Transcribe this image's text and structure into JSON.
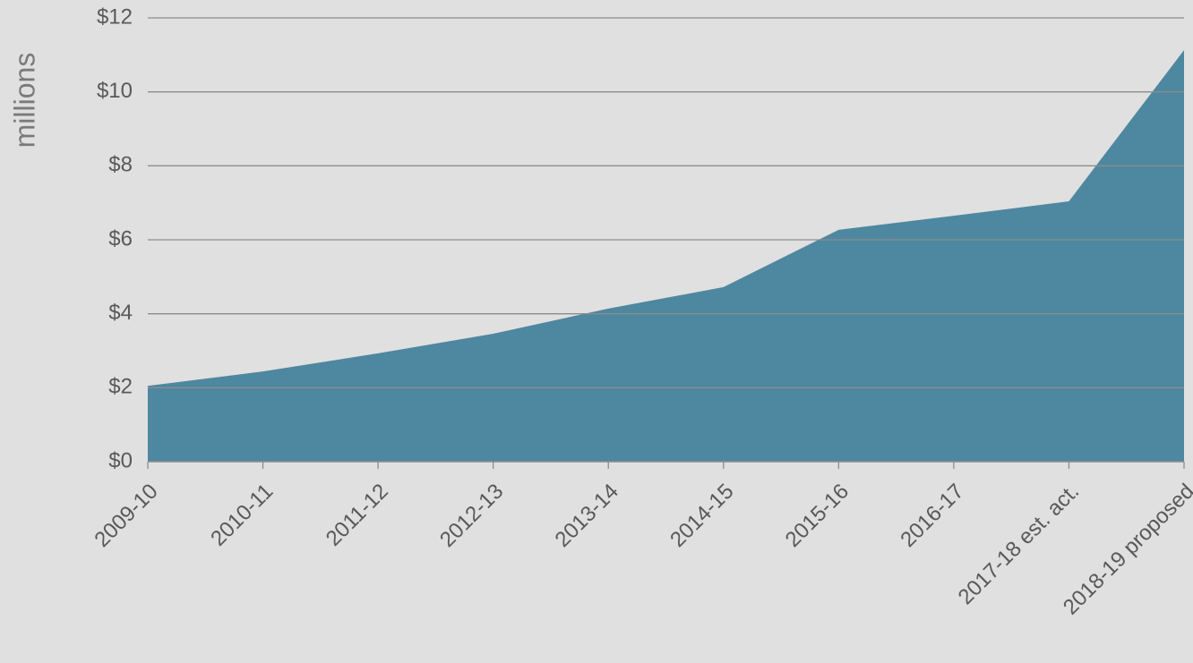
{
  "chart_data": {
    "type": "area",
    "y_label": "millions",
    "categories": [
      "2009-10",
      "2010-11",
      "2011-12",
      "2012-13",
      "2013-14",
      "2014-15",
      "2015-16",
      "2016-17",
      "2017-18 est. act.",
      "2018-19 proposed"
    ],
    "values": [
      2.05,
      2.44,
      2.93,
      3.46,
      4.14,
      4.72,
      6.27,
      6.65,
      7.04,
      11.13
    ],
    "color": "#4e87a0",
    "ylim": [
      0,
      12
    ],
    "yticks": [
      {
        "value": 0,
        "label": "$0"
      },
      {
        "value": 2,
        "label": "$2"
      },
      {
        "value": 4,
        "label": "$4"
      },
      {
        "value": 6,
        "label": "$6"
      },
      {
        "value": 8,
        "label": "$8"
      },
      {
        "value": 10,
        "label": "$10"
      },
      {
        "value": 12,
        "label": "$12"
      }
    ],
    "grid": true
  }
}
